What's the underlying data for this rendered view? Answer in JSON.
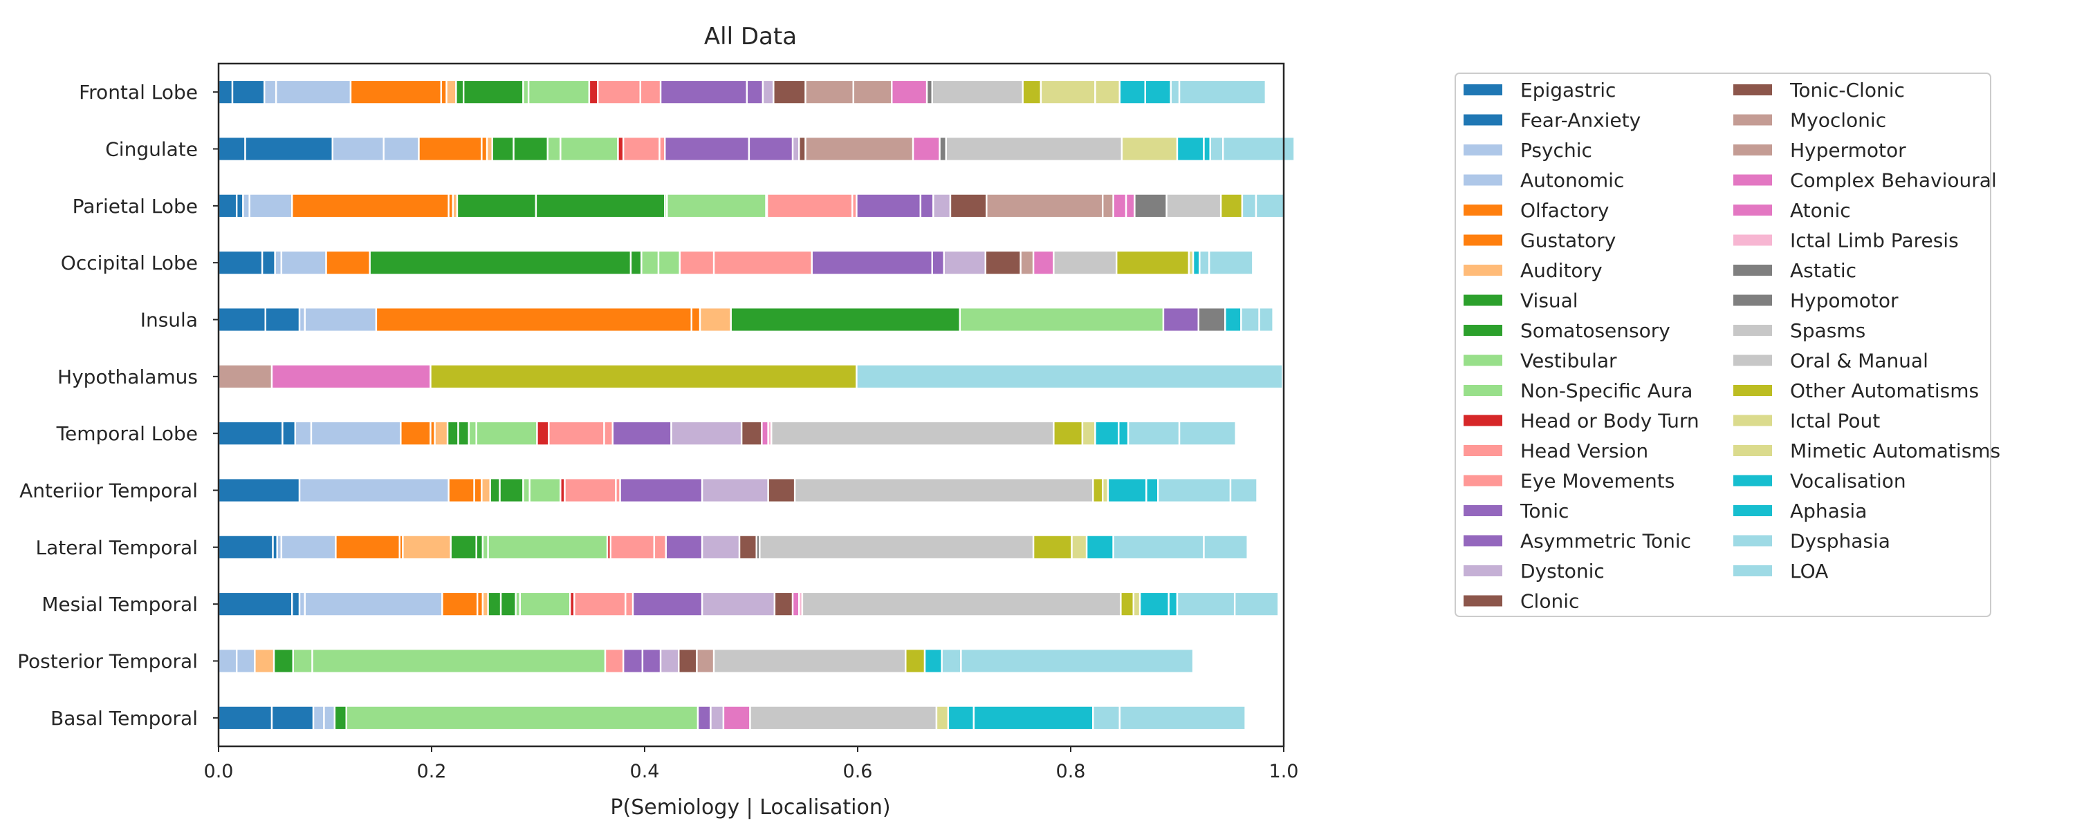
{
  "chart_data": {
    "type": "bar",
    "orientation": "horizontal",
    "stacked": true,
    "title": "All Data",
    "xlabel": "P(Semiology | Localisation)",
    "ylabel": "",
    "xlim": [
      0,
      1
    ],
    "xticks": [
      "0.0",
      "0.2",
      "0.4",
      "0.6",
      "0.8",
      "1.0"
    ],
    "grid": false,
    "legend_position": "right",
    "categories": [
      "Frontal Lobe",
      "Cingulate",
      "Parietal Lobe",
      "Occipital Lobe",
      "Insula",
      "Hypothalamus",
      "Temporal Lobe",
      "Anteriior Temporal",
      "Lateral Temporal",
      "Mesial Temporal",
      "Posterior Temporal",
      "Basal Temporal"
    ],
    "series": [
      {
        "name": "Epigastric",
        "color": "#1f77b4",
        "values": [
          0.013,
          0.025,
          0.017,
          0.041,
          0.044,
          0,
          0.06,
          0.076,
          0.051,
          0.069,
          0,
          0.05
        ]
      },
      {
        "name": "Fear-Anxiety",
        "color": "#1f77b4",
        "values": [
          0.03,
          0.082,
          0.006,
          0.012,
          0.032,
          0,
          0.012,
          0,
          0.004,
          0.007,
          0,
          0.039
        ]
      },
      {
        "name": "Psychic",
        "color": "#aec7e8",
        "values": [
          0.011,
          0.048,
          0.006,
          0.006,
          0.005,
          0,
          0.015,
          0,
          0.004,
          0.005,
          0.017,
          0.01
        ]
      },
      {
        "name": "Autonomic",
        "color": "#aec7e8",
        "values": [
          0.07,
          0.033,
          0.04,
          0.042,
          0.067,
          0,
          0.084,
          0.14,
          0.051,
          0.129,
          0.017,
          0.01
        ]
      },
      {
        "name": "Olfactory",
        "color": "#ff7f0e",
        "values": [
          0.085,
          0.059,
          0.147,
          0.041,
          0.296,
          0,
          0.028,
          0.024,
          0.06,
          0.033,
          0,
          0
        ]
      },
      {
        "name": "Gustatory",
        "color": "#ff7f0e",
        "values": [
          0.005,
          0.005,
          0.004,
          0,
          0.008,
          0,
          0.004,
          0.007,
          0.003,
          0.005,
          0,
          0
        ]
      },
      {
        "name": "Auditory",
        "color": "#ffbb78",
        "values": [
          0.009,
          0.005,
          0.004,
          0,
          0.029,
          0,
          0.012,
          0.008,
          0.045,
          0.005,
          0.018,
          0
        ]
      },
      {
        "name": "Visual",
        "color": "#2ca02c",
        "values": [
          0.007,
          0.02,
          0.074,
          0.245,
          0.215,
          0,
          0.01,
          0.009,
          0.024,
          0.012,
          0,
          0
        ]
      },
      {
        "name": "Somatosensory",
        "color": "#2ca02c",
        "values": [
          0.056,
          0.032,
          0.121,
          0.01,
          0,
          0,
          0.01,
          0.022,
          0.006,
          0.014,
          0.018,
          0.011
        ]
      },
      {
        "name": "Vestibular",
        "color": "#98df8a",
        "values": [
          0.005,
          0.012,
          0.002,
          0.016,
          0,
          0,
          0.007,
          0.006,
          0.005,
          0.004,
          0.018,
          0
        ]
      },
      {
        "name": "Non-Specific Aura",
        "color": "#98df8a",
        "values": [
          0.057,
          0.054,
          0.093,
          0.02,
          0.191,
          0,
          0.057,
          0.029,
          0.112,
          0.047,
          0.275,
          0.33
        ]
      },
      {
        "name": "Head or Body Turn",
        "color": "#d62728",
        "values": [
          0.008,
          0.005,
          0.001,
          0,
          0,
          0,
          0.011,
          0.004,
          0.003,
          0.004,
          0,
          0
        ]
      },
      {
        "name": "Head Version",
        "color": "#ff9896",
        "values": [
          0.04,
          0.034,
          0.08,
          0.032,
          0,
          0,
          0.052,
          0.048,
          0.041,
          0.048,
          0.017,
          0
        ]
      },
      {
        "name": "Eye Movements",
        "color": "#ff9896",
        "values": [
          0.019,
          0.005,
          0.004,
          0.092,
          0,
          0,
          0.008,
          0.004,
          0.011,
          0.007,
          0,
          0
        ]
      },
      {
        "name": "Tonic",
        "color": "#9467bd",
        "values": [
          0.081,
          0.079,
          0.06,
          0.113,
          0.033,
          0,
          0.055,
          0.077,
          0.034,
          0.065,
          0.018,
          0.012
        ]
      },
      {
        "name": "Asymmetric Tonic",
        "color": "#9467bd",
        "values": [
          0.015,
          0.041,
          0.012,
          0.011,
          0,
          0,
          0,
          0,
          0,
          0,
          0.017,
          0
        ]
      },
      {
        "name": "Dystonic",
        "color": "#c5b0d5",
        "values": [
          0.01,
          0.006,
          0.016,
          0.039,
          0,
          0,
          0.066,
          0.062,
          0.035,
          0.068,
          0.017,
          0.012
        ]
      },
      {
        "name": "Clonic",
        "color": "#8c564b",
        "values": [
          0,
          0.006,
          0,
          0,
          0,
          0,
          0.019,
          0.025,
          0.016,
          0.017,
          0.017,
          0
        ]
      },
      {
        "name": "Tonic-Clonic",
        "color": "#8c564b",
        "values": [
          0.03,
          0,
          0.034,
          0.033,
          0,
          0,
          0,
          0,
          0,
          0,
          0,
          0
        ]
      },
      {
        "name": "Myoclonic",
        "color": "#c49c94",
        "values": [
          0.045,
          0.101,
          0.109,
          0.012,
          0,
          0.05,
          0,
          0,
          0,
          0,
          0.016,
          0
        ]
      },
      {
        "name": "Hypermotor",
        "color": "#c49c94",
        "values": [
          0.036,
          0,
          0.01,
          0,
          0,
          0,
          0,
          0,
          0,
          0,
          0,
          0
        ]
      },
      {
        "name": "Complex Behavioural",
        "color": "#e377c2",
        "values": [
          0.033,
          0.025,
          0.012,
          0.019,
          0,
          0.149,
          0.006,
          0,
          0,
          0.006,
          0,
          0.025
        ]
      },
      {
        "name": "Atonic",
        "color": "#e377c2",
        "values": [
          0,
          0,
          0.008,
          0,
          0,
          0,
          0,
          0,
          0,
          0,
          0,
          0
        ]
      },
      {
        "name": "Ictal Limb Paresis",
        "color": "#f7b6d2",
        "values": [
          0,
          0,
          0,
          0,
          0,
          0,
          0.003,
          0,
          0,
          0.003,
          0,
          0
        ]
      },
      {
        "name": "Astatic",
        "color": "#7f7f7f",
        "values": [
          0.005,
          0.006,
          0.03,
          0,
          0,
          0,
          0,
          0,
          0.003,
          0,
          0,
          0
        ]
      },
      {
        "name": "Hypomotor",
        "color": "#7f7f7f",
        "values": [
          0,
          0,
          0,
          0,
          0.025,
          0,
          0,
          0,
          0,
          0,
          0,
          0
        ]
      },
      {
        "name": "Spasms",
        "color": "#c7c7c7",
        "values": [
          0.085,
          0.165,
          0,
          0.059,
          0,
          0,
          0.265,
          0.28,
          0.257,
          0.299,
          0.18,
          0.175
        ]
      },
      {
        "name": "Oral & Manual",
        "color": "#c7c7c7",
        "values": [
          0,
          0,
          0.051,
          0,
          0,
          0,
          0,
          0,
          0,
          0,
          0,
          0
        ]
      },
      {
        "name": "Other Automatisms",
        "color": "#bcbd22",
        "values": [
          0.017,
          0,
          0.02,
          0.068,
          0,
          0.4,
          0.027,
          0.009,
          0.036,
          0.012,
          0.018,
          0
        ]
      },
      {
        "name": "Ictal Pout",
        "color": "#dbdb8d",
        "values": [
          0.051,
          0.052,
          0,
          0.004,
          0,
          0,
          0.012,
          0.005,
          0.014,
          0.006,
          0,
          0.011
        ]
      },
      {
        "name": "Mimetic Automatisms",
        "color": "#dbdb8d",
        "values": [
          0.023,
          0,
          0,
          0,
          0,
          0,
          0,
          0,
          0,
          0,
          0,
          0
        ]
      },
      {
        "name": "Vocalisation",
        "color": "#17becf",
        "values": [
          0.024,
          0.025,
          0,
          0.006,
          0.015,
          0,
          0.022,
          0.036,
          0.025,
          0.027,
          0.016,
          0.024
        ]
      },
      {
        "name": "Aphasia",
        "color": "#17becf",
        "values": [
          0.024,
          0.006,
          0,
          0,
          0,
          0,
          0.009,
          0.011,
          0,
          0.008,
          0,
          0.112
        ]
      },
      {
        "name": "Dysphasia",
        "color": "#9edae5",
        "values": [
          0.008,
          0.012,
          0.013,
          0.009,
          0.017,
          0,
          0.048,
          0.068,
          0.085,
          0.054,
          0.018,
          0.025
        ]
      },
      {
        "name": "LOA",
        "color": "#9edae5",
        "values": [
          0.081,
          0.067,
          0.027,
          0.041,
          0.013,
          0.4,
          0.053,
          0.025,
          0.041,
          0.041,
          0.218,
          0.118
        ]
      }
    ]
  }
}
